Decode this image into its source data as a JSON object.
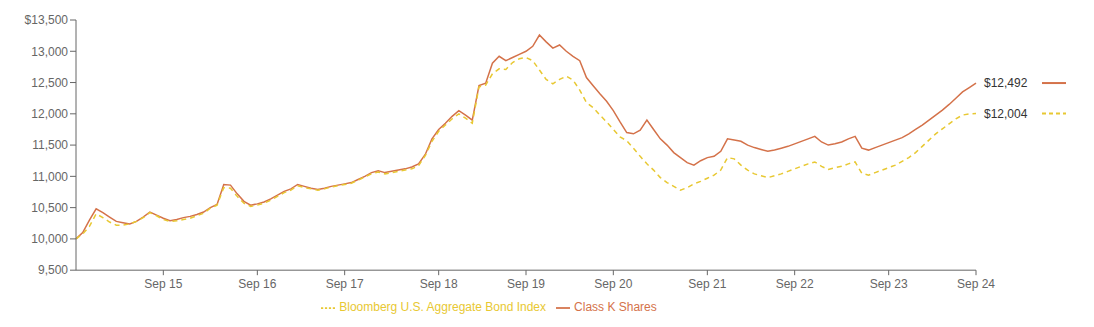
{
  "chart_data": {
    "type": "line",
    "categories": [
      null,
      null,
      null,
      null,
      null,
      null,
      null,
      null,
      null,
      null,
      null,
      null,
      null,
      "Sep 15",
      null,
      null,
      null,
      null,
      null,
      null,
      null,
      null,
      null,
      null,
      null,
      null,
      null,
      "Sep 16",
      null,
      null,
      null,
      null,
      null,
      null,
      null,
      null,
      null,
      null,
      null,
      null,
      "Sep 17",
      null,
      null,
      null,
      null,
      null,
      null,
      null,
      null,
      null,
      null,
      null,
      null,
      null,
      "Sep 18",
      null,
      null,
      null,
      null,
      null,
      null,
      null,
      null,
      null,
      null,
      null,
      null,
      "Sep 19",
      null,
      null,
      null,
      null,
      null,
      null,
      null,
      null,
      null,
      null,
      null,
      null,
      "Sep 20",
      null,
      null,
      null,
      null,
      null,
      null,
      null,
      null,
      null,
      null,
      null,
      null,
      null,
      "Sep 21",
      null,
      null,
      null,
      null,
      null,
      null,
      null,
      null,
      null,
      null,
      null,
      null,
      "Sep 22",
      null,
      null,
      null,
      null,
      null,
      null,
      null,
      null,
      null,
      null,
      null,
      null,
      null,
      "Sep 23",
      null,
      null,
      null,
      null,
      null,
      null,
      null,
      null,
      null,
      null,
      null,
      null,
      "Sep 24"
    ],
    "series": [
      {
        "name": "Class K Shares",
        "color": "#D4724A",
        "line_style": "solid",
        "values": [
          10000,
          10100,
          10300,
          10480,
          10420,
          10350,
          10280,
          10260,
          10240,
          10280,
          10350,
          10430,
          10380,
          10330,
          10290,
          10310,
          10340,
          10360,
          10390,
          10430,
          10500,
          10550,
          10870,
          10860,
          10720,
          10600,
          10540,
          10560,
          10590,
          10640,
          10700,
          10760,
          10800,
          10870,
          10840,
          10810,
          10790,
          10810,
          10840,
          10860,
          10880,
          10900,
          10950,
          11000,
          11060,
          11090,
          11060,
          11080,
          11100,
          11120,
          11150,
          11200,
          11350,
          11600,
          11750,
          11850,
          11960,
          12050,
          11980,
          11900,
          12450,
          12490,
          12810,
          12920,
          12850,
          12900,
          12950,
          13000,
          13080,
          13260,
          13150,
          13050,
          13100,
          13000,
          12920,
          12850,
          12580,
          12450,
          12320,
          12200,
          12050,
          11870,
          11700,
          11680,
          11740,
          11900,
          11750,
          11600,
          11500,
          11380,
          11300,
          11220,
          11180,
          11250,
          11300,
          11320,
          11400,
          11600,
          11580,
          11560,
          11500,
          11460,
          11430,
          11400,
          11420,
          11450,
          11480,
          11520,
          11560,
          11600,
          11640,
          11550,
          11500,
          11520,
          11550,
          11600,
          11640,
          11450,
          11420,
          11460,
          11500,
          11540,
          11580,
          11620,
          11680,
          11750,
          11820,
          11900,
          11980,
          12060,
          12150,
          12250,
          12350,
          12420,
          12492
        ]
      },
      {
        "name": "Bloomberg U.S. Aggregate Bond Index",
        "color": "#E8C832",
        "line_style": "dashed",
        "values": [
          10000,
          10080,
          10200,
          10400,
          10340,
          10270,
          10220,
          10220,
          10240,
          10280,
          10340,
          10420,
          10370,
          10310,
          10280,
          10290,
          10310,
          10330,
          10370,
          10410,
          10490,
          10540,
          10820,
          10810,
          10680,
          10570,
          10520,
          10540,
          10570,
          10620,
          10680,
          10740,
          10780,
          10850,
          10820,
          10800,
          10780,
          10800,
          10830,
          10850,
          10870,
          10890,
          10940,
          10990,
          11040,
          11070,
          11040,
          11060,
          11080,
          11100,
          11120,
          11170,
          11330,
          11560,
          11720,
          11820,
          11920,
          12000,
          11930,
          11850,
          12430,
          12460,
          12640,
          12720,
          12710,
          12820,
          12880,
          12900,
          12850,
          12700,
          12550,
          12480,
          12550,
          12600,
          12540,
          12380,
          12180,
          12100,
          11980,
          11870,
          11750,
          11630,
          11570,
          11450,
          11320,
          11200,
          11100,
          10980,
          10900,
          10840,
          10780,
          10820,
          10880,
          10920,
          10970,
          11020,
          11100,
          11300,
          11280,
          11180,
          11100,
          11040,
          11010,
          10980,
          11010,
          11040,
          11080,
          11120,
          11160,
          11200,
          11230,
          11160,
          11110,
          11140,
          11160,
          11200,
          11230,
          11050,
          11020,
          11060,
          11100,
          11140,
          11180,
          11240,
          11300,
          11380,
          11480,
          11580,
          11680,
          11760,
          11840,
          11920,
          11980,
          12000,
          12004
        ]
      }
    ],
    "annotations": [
      {
        "text": "$12,492",
        "series": "Class K Shares"
      },
      {
        "text": "$12,004",
        "series": "Bloomberg U.S. Aggregate Bond Index"
      }
    ],
    "ylim": [
      9500,
      13500
    ],
    "yticks": [
      {
        "value": 9500,
        "label": "9,500"
      },
      {
        "value": 10000,
        "label": "10,000"
      },
      {
        "value": 10500,
        "label": "10,500"
      },
      {
        "value": 11000,
        "label": "11,000"
      },
      {
        "value": 11500,
        "label": "11,500"
      },
      {
        "value": 12000,
        "label": "12,000"
      },
      {
        "value": 12500,
        "label": "12,500"
      },
      {
        "value": 13000,
        "label": "13,000"
      },
      {
        "value": 13500,
        "label": "$13,500"
      }
    ],
    "grid": false,
    "legend": "bottom"
  }
}
